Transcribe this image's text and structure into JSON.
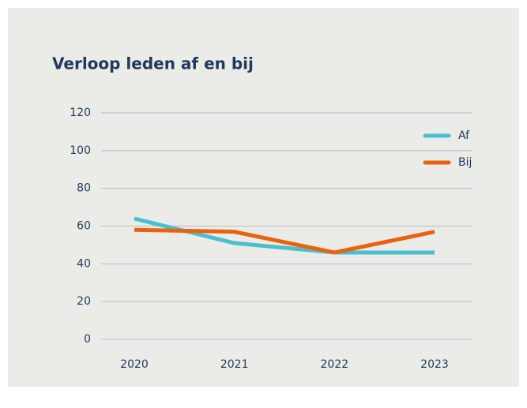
{
  "chart_data": {
    "type": "line",
    "title": "Verloop leden af en bij",
    "categories": [
      "2020",
      "2021",
      "2022",
      "2023"
    ],
    "series": [
      {
        "name": "Af",
        "color": "#4bbfcf",
        "values": [
          64,
          51,
          46,
          46
        ]
      },
      {
        "name": "Bij",
        "color": "#e8620f",
        "values": [
          58,
          57,
          46,
          57
        ]
      }
    ],
    "ylim": [
      0,
      120
    ],
    "yticks": [
      0,
      20,
      40,
      60,
      80,
      100,
      120
    ],
    "grid": true,
    "legend": "top-right"
  }
}
